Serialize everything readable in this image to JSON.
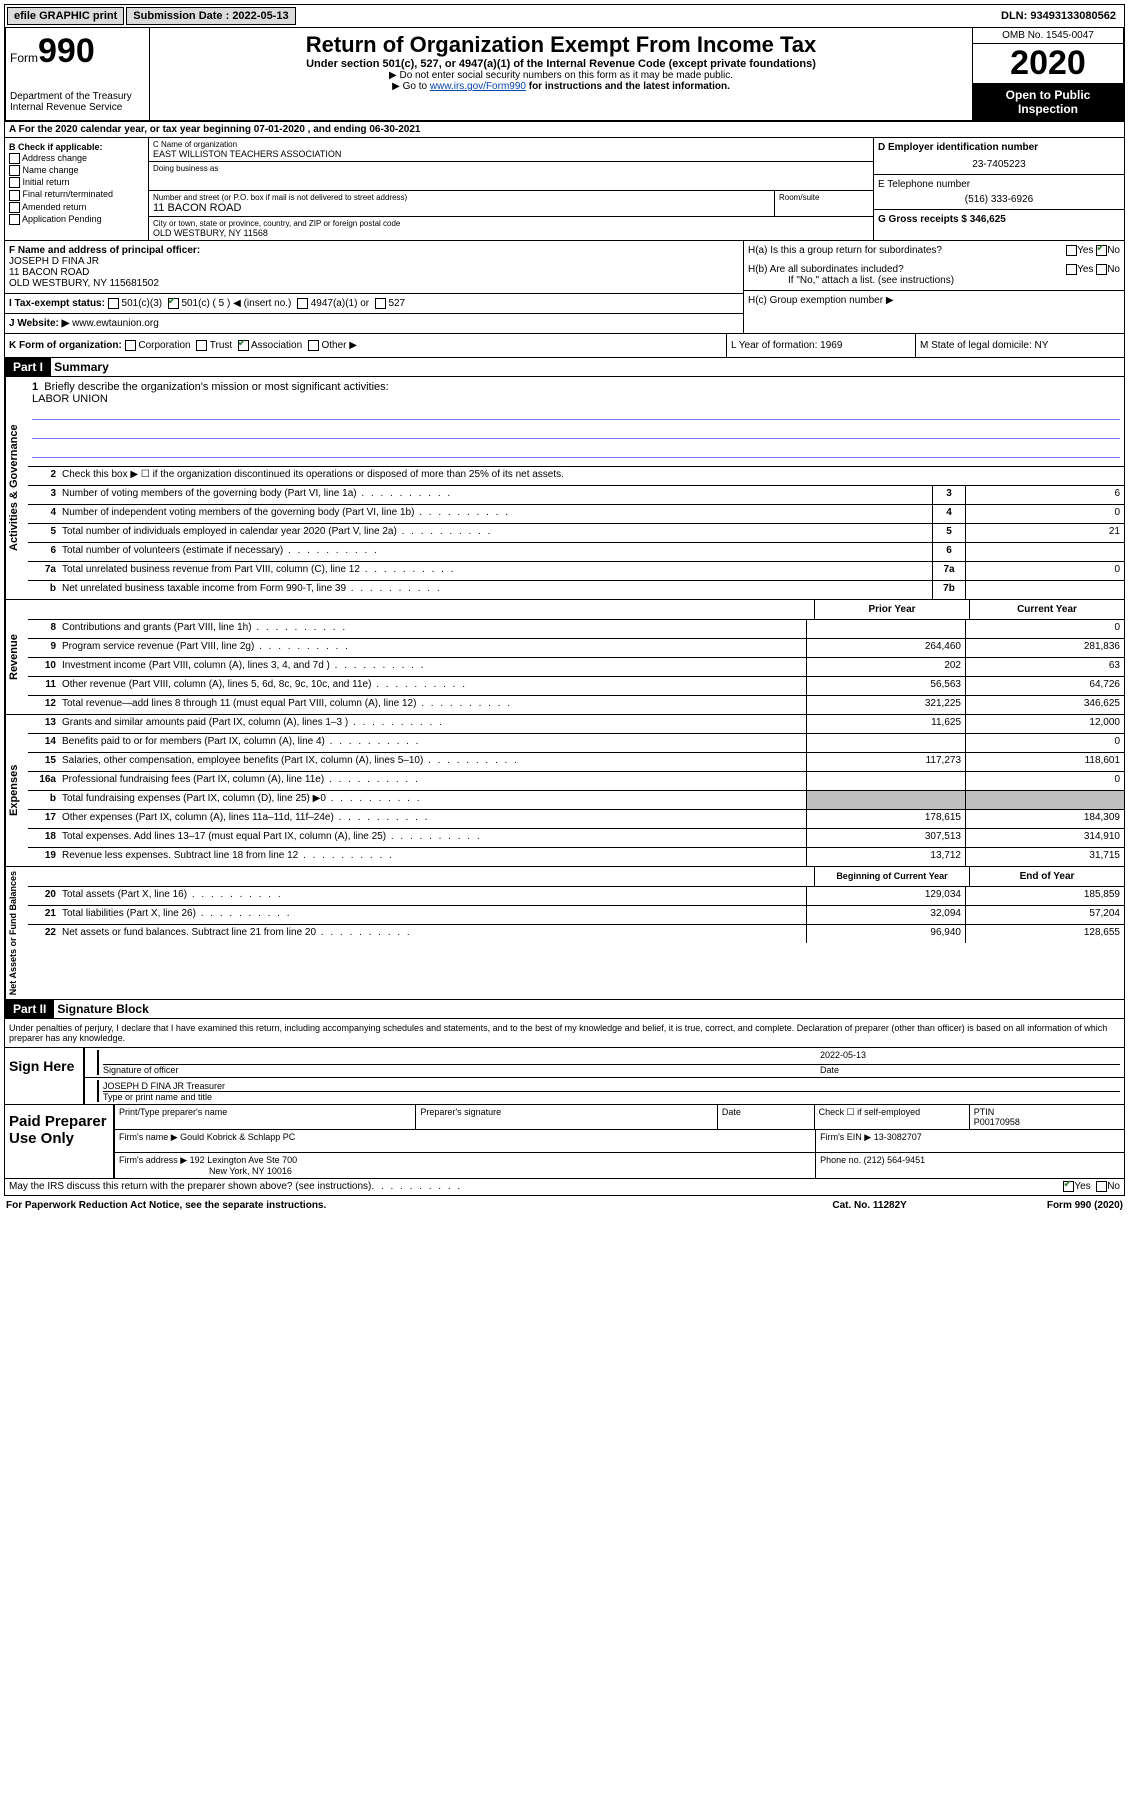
{
  "topbar": {
    "efile": "efile GRAPHIC print",
    "submission_label": "Submission Date : 2022-05-13",
    "dln": "DLN: 93493133080562"
  },
  "header": {
    "form_prefix": "Form",
    "form_number": "990",
    "dept": "Department of the Treasury",
    "irs": "Internal Revenue Service",
    "title": "Return of Organization Exempt From Income Tax",
    "subtitle": "Under section 501(c), 527, or 4947(a)(1) of the Internal Revenue Code (except private foundations)",
    "note1": "▶ Do not enter social security numbers on this form as it may be made public.",
    "note2_prefix": "▶ Go to ",
    "note2_link": "www.irs.gov/Form990",
    "note2_suffix": " for instructions and the latest information.",
    "omb": "OMB No. 1545-0047",
    "year": "2020",
    "open": "Open to Public Inspection"
  },
  "rowA": "A   For the 2020 calendar year, or tax year beginning 07-01-2020    , and ending 06-30-2021",
  "colB": {
    "title": "B Check if applicable:",
    "items": [
      "Address change",
      "Name change",
      "Initial return",
      "Final return/terminated",
      "Amended return",
      "Application Pending"
    ]
  },
  "colC": {
    "name_label": "C Name of organization",
    "name": "EAST WILLISTON TEACHERS ASSOCIATION",
    "dba_label": "Doing business as",
    "street_label": "Number and street (or P.O. box if mail is not delivered to street address)",
    "room_label": "Room/suite",
    "street": "11 BACON ROAD",
    "city_label": "City or town, state or province, country, and ZIP or foreign postal code",
    "city": "OLD WESTBURY, NY  11568"
  },
  "colD": {
    "ein_label": "D Employer identification number",
    "ein": "23-7405223",
    "phone_label": "E Telephone number",
    "phone": "(516) 333-6926",
    "gross_label": "G Gross receipts $ 346,625"
  },
  "rowF": {
    "label": "F  Name and address of principal officer:",
    "name": "JOSEPH D FINA JR",
    "addr1": "11 BACON ROAD",
    "addr2": "OLD WESTBURY, NY  115681502"
  },
  "rowH": {
    "ha": "H(a)  Is this a group return for subordinates?",
    "hb": "H(b)  Are all subordinates included?",
    "hb_note": "If \"No,\" attach a list. (see instructions)",
    "hc": "H(c)  Group exemption number ▶"
  },
  "rowI": {
    "label": "I     Tax-exempt status:",
    "opt1": "501(c)(3)",
    "opt2": "501(c) ( 5 ) ◀ (insert no.)",
    "opt3": "4947(a)(1) or",
    "opt4": "527"
  },
  "rowJ": {
    "label": "J    Website: ▶  ",
    "site": "www.ewtaunion.org"
  },
  "rowK": {
    "label": "K Form of organization:",
    "opts": [
      "Corporation",
      "Trust",
      "Association",
      "Other ▶"
    ],
    "year_label": "L Year of formation: 1969",
    "state_label": "M State of legal domicile: NY"
  },
  "part1": {
    "header": "Part I",
    "title": "Summary"
  },
  "summary": {
    "gov_label": "Activities & Governance",
    "rev_label": "Revenue",
    "exp_label": "Expenses",
    "net_label": "Net Assets or Fund Balances",
    "line1_label": "Briefly describe the organization's mission or most significant activities:",
    "line1_text": "LABOR UNION",
    "line2": "Check this box ▶ ☐  if the organization discontinued its operations or disposed of more than 25% of its net assets.",
    "lines": [
      {
        "n": "3",
        "label": "Number of voting members of the governing body (Part VI, line 1a)",
        "box": "3",
        "val": "6"
      },
      {
        "n": "4",
        "label": "Number of independent voting members of the governing body (Part VI, line 1b)",
        "box": "4",
        "val": "0"
      },
      {
        "n": "5",
        "label": "Total number of individuals employed in calendar year 2020 (Part V, line 2a)",
        "box": "5",
        "val": "21"
      },
      {
        "n": "6",
        "label": "Total number of volunteers (estimate if necessary)",
        "box": "6",
        "val": ""
      },
      {
        "n": "7a",
        "label": "Total unrelated business revenue from Part VIII, column (C), line 12",
        "box": "7a",
        "val": "0"
      },
      {
        "n": "b",
        "label": "Net unrelated business taxable income from Form 990-T, line 39",
        "box": "7b",
        "val": ""
      }
    ],
    "prior_head": "Prior Year",
    "current_head": "Current Year",
    "rev_lines": [
      {
        "n": "8",
        "label": "Contributions and grants (Part VIII, line 1h)",
        "prior": "",
        "curr": "0"
      },
      {
        "n": "9",
        "label": "Program service revenue (Part VIII, line 2g)",
        "prior": "264,460",
        "curr": "281,836"
      },
      {
        "n": "10",
        "label": "Investment income (Part VIII, column (A), lines 3, 4, and 7d )",
        "prior": "202",
        "curr": "63"
      },
      {
        "n": "11",
        "label": "Other revenue (Part VIII, column (A), lines 5, 6d, 8c, 9c, 10c, and 11e)",
        "prior": "56,563",
        "curr": "64,726"
      },
      {
        "n": "12",
        "label": "Total revenue—add lines 8 through 11 (must equal Part VIII, column (A), line 12)",
        "prior": "321,225",
        "curr": "346,625"
      }
    ],
    "exp_lines": [
      {
        "n": "13",
        "label": "Grants and similar amounts paid (Part IX, column (A), lines 1–3 )",
        "prior": "11,625",
        "curr": "12,000"
      },
      {
        "n": "14",
        "label": "Benefits paid to or for members (Part IX, column (A), line 4)",
        "prior": "",
        "curr": "0"
      },
      {
        "n": "15",
        "label": "Salaries, other compensation, employee benefits (Part IX, column (A), lines 5–10)",
        "prior": "117,273",
        "curr": "118,601"
      },
      {
        "n": "16a",
        "label": "Professional fundraising fees (Part IX, column (A), line 11e)",
        "prior": "",
        "curr": "0"
      },
      {
        "n": "b",
        "label": "Total fundraising expenses (Part IX, column (D), line 25) ▶0",
        "prior": "SHADED",
        "curr": "SHADED"
      },
      {
        "n": "17",
        "label": "Other expenses (Part IX, column (A), lines 11a–11d, 11f–24e)",
        "prior": "178,615",
        "curr": "184,309"
      },
      {
        "n": "18",
        "label": "Total expenses. Add lines 13–17 (must equal Part IX, column (A), line 25)",
        "prior": "307,513",
        "curr": "314,910"
      },
      {
        "n": "19",
        "label": "Revenue less expenses. Subtract line 18 from line 12",
        "prior": "13,712",
        "curr": "31,715"
      }
    ],
    "boy_head": "Beginning of Current Year",
    "eoy_head": "End of Year",
    "net_lines": [
      {
        "n": "20",
        "label": "Total assets (Part X, line 16)",
        "prior": "129,034",
        "curr": "185,859"
      },
      {
        "n": "21",
        "label": "Total liabilities (Part X, line 26)",
        "prior": "32,094",
        "curr": "57,204"
      },
      {
        "n": "22",
        "label": "Net assets or fund balances. Subtract line 21 from line 20",
        "prior": "96,940",
        "curr": "128,655"
      }
    ]
  },
  "part2": {
    "header": "Part II",
    "title": "Signature Block",
    "perjury": "Under penalties of perjury, I declare that I have examined this return, including accompanying schedules and statements, and to the best of my knowledge and belief, it is true, correct, and complete. Declaration of preparer (other than officer) is based on all information of which preparer has any knowledge."
  },
  "sign": {
    "left": "Sign Here",
    "sig_label": "Signature of officer",
    "date": "2022-05-13",
    "date_label": "Date",
    "name": "JOSEPH D FINA JR  Treasurer",
    "name_label": "Type or print name and title"
  },
  "prep": {
    "left": "Paid Preparer Use Only",
    "r1c1": "Print/Type preparer's name",
    "r1c2": "Preparer's signature",
    "r1c3": "Date",
    "r1c4_label": "Check ☐ if self-employed",
    "r1c5_label": "PTIN",
    "r1c5": "P00170958",
    "r2_label": "Firm's name     ▶",
    "r2_val": "Gould Kobrick & Schlapp PC",
    "r2_ein": "Firm's EIN ▶ 13-3082707",
    "r3_label": "Firm's address ▶",
    "r3_val1": "192 Lexington Ave Ste 700",
    "r3_val2": "New York, NY  10016",
    "r3_phone": "Phone no. (212) 564-9451"
  },
  "discuss": "May the IRS discuss this return with the preparer shown above? (see instructions)",
  "footer": {
    "left": "For Paperwork Reduction Act Notice, see the separate instructions.",
    "mid": "Cat. No. 11282Y",
    "right": "Form 990 (2020)"
  }
}
